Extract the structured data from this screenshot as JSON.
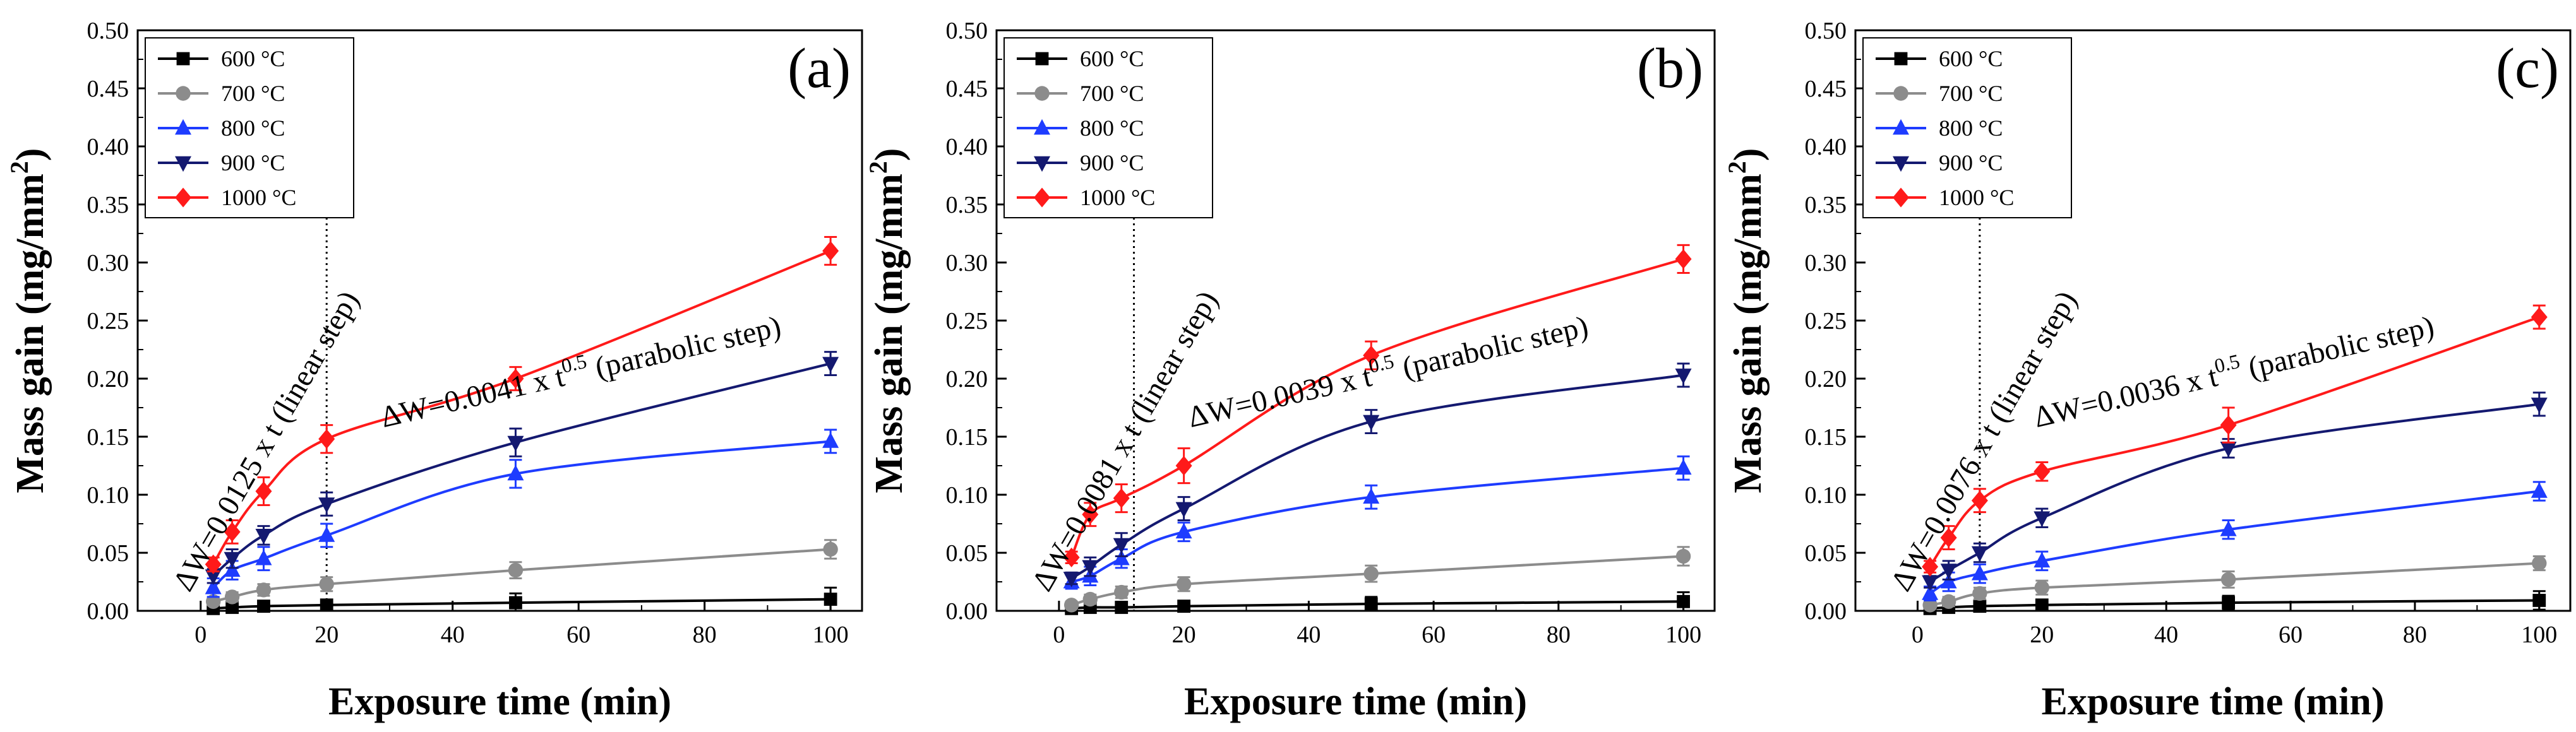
{
  "figure": {
    "x_axis_label": "Exposure time (min)",
    "y_axis_label_main": "Mass gain (mg/mm",
    "y_axis_label_sup": "2",
    "y_axis_label_close": ")"
  },
  "chart_data": [
    {
      "type": "line",
      "panel_label": "(a)",
      "xlabel": "Exposure time (min)",
      "ylabel": "Mass gain (mg/mm2)",
      "xlim": [
        -10,
        105
      ],
      "ylim": [
        0,
        0.5
      ],
      "x_ticks": [
        "0",
        "20",
        "40",
        "60",
        "80",
        "100"
      ],
      "y_ticks": [
        "0.00",
        "0.05",
        "0.10",
        "0.15",
        "0.20",
        "0.25",
        "0.30",
        "0.35",
        "0.40",
        "0.45",
        "0.50"
      ],
      "transition_x": 20,
      "linear_annotation": {
        "prefix": "ΔW=0.0125 x t (linear step)"
      },
      "parabolic_annotation": {
        "prefix": "ΔW=0.0041 x t",
        "exponent": "0.5",
        "suffix": " (parabolic step)"
      },
      "series": [
        {
          "name": "600 °C",
          "color": "#000000",
          "marker": "square",
          "x": [
            2,
            5,
            10,
            20,
            50,
            100
          ],
          "values": [
            0.002,
            0.003,
            0.004,
            0.005,
            0.007,
            0.01
          ],
          "errors": [
            0.003,
            0.003,
            0.004,
            0.004,
            0.008,
            0.01
          ]
        },
        {
          "name": "700 °C",
          "color": "#8c8c8c",
          "marker": "circle",
          "x": [
            2,
            5,
            10,
            20,
            50,
            100
          ],
          "values": [
            0.008,
            0.012,
            0.018,
            0.023,
            0.035,
            0.053
          ],
          "errors": [
            0.003,
            0.004,
            0.005,
            0.006,
            0.007,
            0.008
          ]
        },
        {
          "name": "800 °C",
          "color": "#1e3cff",
          "marker": "triangle-up",
          "x": [
            2,
            5,
            10,
            20,
            50,
            100
          ],
          "values": [
            0.02,
            0.035,
            0.045,
            0.065,
            0.118,
            0.146
          ],
          "errors": [
            0.008,
            0.008,
            0.01,
            0.01,
            0.012,
            0.01
          ]
        },
        {
          "name": "900 °C",
          "color": "#141970",
          "marker": "triangle-down",
          "x": [
            2,
            5,
            10,
            20,
            50,
            100
          ],
          "values": [
            0.03,
            0.045,
            0.065,
            0.092,
            0.145,
            0.213
          ],
          "errors": [
            0.006,
            0.008,
            0.008,
            0.01,
            0.012,
            0.01
          ]
        },
        {
          "name": "1000 °C",
          "color": "#ff1a1a",
          "marker": "diamond",
          "x": [
            2,
            5,
            10,
            20,
            50,
            100
          ],
          "values": [
            0.04,
            0.068,
            0.103,
            0.148,
            0.2,
            0.31
          ],
          "errors": [
            0.006,
            0.01,
            0.012,
            0.012,
            0.01,
            0.012
          ]
        }
      ]
    },
    {
      "type": "line",
      "panel_label": "(b)",
      "xlabel": "Exposure time (min)",
      "ylabel": "Mass gain (mg/mm2)",
      "xlim": [
        -10,
        105
      ],
      "ylim": [
        0,
        0.5
      ],
      "x_ticks": [
        "0",
        "20",
        "40",
        "60",
        "80",
        "100"
      ],
      "y_ticks": [
        "0.00",
        "0.05",
        "0.10",
        "0.15",
        "0.20",
        "0.25",
        "0.30",
        "0.35",
        "0.40",
        "0.45",
        "0.50"
      ],
      "transition_x": 12,
      "linear_annotation": {
        "prefix": "ΔW=0.0081 x t (linear step)"
      },
      "parabolic_annotation": {
        "prefix": "ΔW=0.0039 x t",
        "exponent": "0.5",
        "suffix": " (parabolic step)"
      },
      "series": [
        {
          "name": "600 °C",
          "color": "#000000",
          "marker": "square",
          "x": [
            2,
            5,
            10,
            20,
            50,
            100
          ],
          "values": [
            0.002,
            0.003,
            0.003,
            0.004,
            0.006,
            0.008
          ],
          "errors": [
            0.003,
            0.003,
            0.003,
            0.004,
            0.006,
            0.008
          ]
        },
        {
          "name": "700 °C",
          "color": "#8c8c8c",
          "marker": "circle",
          "x": [
            2,
            5,
            10,
            20,
            50,
            100
          ],
          "values": [
            0.005,
            0.01,
            0.016,
            0.023,
            0.032,
            0.047
          ],
          "errors": [
            0.003,
            0.004,
            0.005,
            0.006,
            0.007,
            0.008
          ]
        },
        {
          "name": "800 °C",
          "color": "#1e3cff",
          "marker": "triangle-up",
          "x": [
            2,
            5,
            10,
            20,
            50,
            100
          ],
          "values": [
            0.025,
            0.03,
            0.045,
            0.068,
            0.098,
            0.123
          ],
          "errors": [
            0.006,
            0.008,
            0.008,
            0.008,
            0.01,
            0.01
          ]
        },
        {
          "name": "900 °C",
          "color": "#141970",
          "marker": "triangle-down",
          "x": [
            2,
            5,
            10,
            20,
            50,
            100
          ],
          "values": [
            0.028,
            0.038,
            0.057,
            0.088,
            0.163,
            0.203
          ],
          "errors": [
            0.005,
            0.008,
            0.01,
            0.01,
            0.01,
            0.01
          ]
        },
        {
          "name": "1000 °C",
          "color": "#ff1a1a",
          "marker": "diamond",
          "x": [
            2,
            5,
            10,
            20,
            50,
            100
          ],
          "values": [
            0.046,
            0.083,
            0.097,
            0.125,
            0.22,
            0.303
          ],
          "errors": [
            0.005,
            0.01,
            0.012,
            0.015,
            0.012,
            0.012
          ]
        }
      ]
    },
    {
      "type": "line",
      "panel_label": "(c)",
      "xlabel": "Exposure time (min)",
      "ylabel": "Mass gain (mg/mm2)",
      "xlim": [
        -10,
        105
      ],
      "ylim": [
        0,
        0.5
      ],
      "x_ticks": [
        "0",
        "20",
        "40",
        "60",
        "80",
        "100"
      ],
      "y_ticks": [
        "0.00",
        "0.05",
        "0.10",
        "0.15",
        "0.20",
        "0.25",
        "0.30",
        "0.35",
        "0.40",
        "0.45",
        "0.50"
      ],
      "transition_x": 10,
      "linear_annotation": {
        "prefix": "ΔW=0.0076 x t (linear step)"
      },
      "parabolic_annotation": {
        "prefix": "ΔW=0.0036 x t",
        "exponent": "0.5",
        "suffix": " (parabolic step)"
      },
      "series": [
        {
          "name": "600 °C",
          "color": "#000000",
          "marker": "square",
          "x": [
            2,
            5,
            10,
            20,
            50,
            100
          ],
          "values": [
            0.002,
            0.003,
            0.004,
            0.005,
            0.007,
            0.009
          ],
          "errors": [
            0.003,
            0.003,
            0.004,
            0.004,
            0.006,
            0.008
          ]
        },
        {
          "name": "700 °C",
          "color": "#8c8c8c",
          "marker": "circle",
          "x": [
            2,
            5,
            10,
            20,
            50,
            100
          ],
          "values": [
            0.005,
            0.008,
            0.015,
            0.02,
            0.027,
            0.041
          ],
          "errors": [
            0.003,
            0.004,
            0.005,
            0.006,
            0.007,
            0.006
          ]
        },
        {
          "name": "800 °C",
          "color": "#1e3cff",
          "marker": "triangle-up",
          "x": [
            2,
            5,
            10,
            20,
            50,
            100
          ],
          "values": [
            0.015,
            0.025,
            0.032,
            0.043,
            0.07,
            0.103
          ],
          "errors": [
            0.006,
            0.008,
            0.008,
            0.008,
            0.008,
            0.008
          ]
        },
        {
          "name": "900 °C",
          "color": "#141970",
          "marker": "triangle-down",
          "x": [
            2,
            5,
            10,
            20,
            50,
            100
          ],
          "values": [
            0.025,
            0.035,
            0.05,
            0.08,
            0.14,
            0.178
          ],
          "errors": [
            0.005,
            0.008,
            0.008,
            0.008,
            0.008,
            0.01
          ]
        },
        {
          "name": "1000 °C",
          "color": "#ff1a1a",
          "marker": "diamond",
          "x": [
            2,
            5,
            10,
            20,
            50,
            100
          ],
          "values": [
            0.038,
            0.063,
            0.095,
            0.12,
            0.16,
            0.253
          ],
          "errors": [
            0.005,
            0.01,
            0.01,
            0.008,
            0.015,
            0.01
          ]
        }
      ]
    }
  ]
}
